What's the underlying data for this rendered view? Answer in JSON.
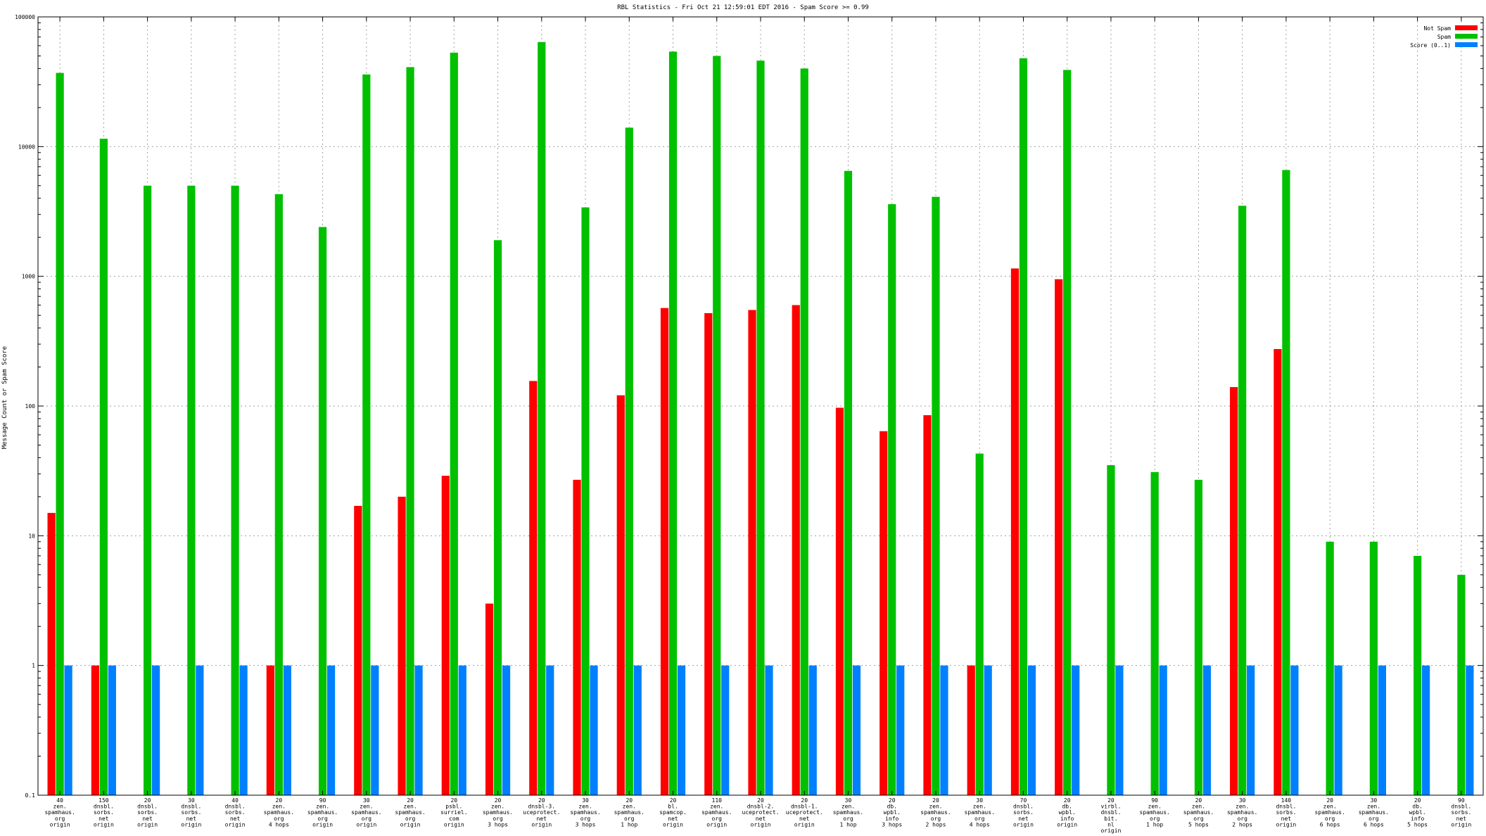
{
  "chart_data": {
    "type": "bar",
    "title": "RBL Statistics - Fri Oct 21 12:59:01 EDT 2016 - Spam Score >= 0.99",
    "xlabel": "",
    "ylabel": "Message Count or Spam Score",
    "yscale": "log",
    "ylim": [
      0.1,
      100000
    ],
    "yticks": [
      "0.1",
      "1",
      "10",
      "100",
      "1000",
      "10000",
      "100000"
    ],
    "grid": true,
    "legend_position": "top-right",
    "categories": [
      [
        "40",
        "zen.",
        "spamhaus.",
        "org",
        "origin"
      ],
      [
        "150",
        "dnsbl.",
        "sorbs.",
        "net",
        "origin"
      ],
      [
        "20",
        "dnsbl.",
        "sorbs.",
        "net",
        "origin"
      ],
      [
        "30",
        "dnsbl.",
        "sorbs.",
        "net",
        "origin"
      ],
      [
        "40",
        "dnsbl.",
        "sorbs.",
        "net",
        "origin"
      ],
      [
        "20",
        "zen.",
        "spamhaus.",
        "org",
        "4 hops"
      ],
      [
        "90",
        "zen.",
        "spamhaus.",
        "org",
        "origin"
      ],
      [
        "30",
        "zen.",
        "spamhaus.",
        "org",
        "origin"
      ],
      [
        "20",
        "zen.",
        "spamhaus.",
        "org",
        "origin"
      ],
      [
        "20",
        "psbl.",
        "surriel.",
        "com",
        "origin"
      ],
      [
        "20",
        "zen.",
        "spamhaus.",
        "org",
        "3 hops"
      ],
      [
        "20",
        "dnsbl-3.",
        "uceprotect.",
        "net",
        "origin"
      ],
      [
        "30",
        "zen.",
        "spamhaus.",
        "org",
        "3 hops"
      ],
      [
        "20",
        "zen.",
        "spamhaus.",
        "org",
        "1 hop"
      ],
      [
        "20",
        "bl.",
        "spamcop.",
        "net",
        "origin"
      ],
      [
        "110",
        "zen.",
        "spamhaus.",
        "org",
        "origin"
      ],
      [
        "20",
        "dnsbl-2.",
        "uceprotect.",
        "net",
        "origin"
      ],
      [
        "20",
        "dnsbl-1.",
        "uceprotect.",
        "net",
        "origin"
      ],
      [
        "30",
        "zen.",
        "spamhaus.",
        "org",
        "1 hop"
      ],
      [
        "20",
        "db.",
        "wpbl.",
        "info",
        "3 hops"
      ],
      [
        "20",
        "zen.",
        "spamhaus.",
        "org",
        "2 hops"
      ],
      [
        "30",
        "zen.",
        "spamhaus.",
        "org",
        "4 hops"
      ],
      [
        "70",
        "dnsbl.",
        "sorbs.",
        "net",
        "origin"
      ],
      [
        "20",
        "db.",
        "wpbl.",
        "info",
        "origin"
      ],
      [
        "20",
        "virbl.",
        "dnsbl.",
        "bit.",
        "nl",
        "origin"
      ],
      [
        "90",
        "zen.",
        "spamhaus.",
        "org",
        "1 hop"
      ],
      [
        "20",
        "zen.",
        "spamhaus.",
        "org",
        "5 hops"
      ],
      [
        "30",
        "zen.",
        "spamhaus.",
        "org",
        "2 hops"
      ],
      [
        "140",
        "dnsbl.",
        "sorbs.",
        "net",
        "origin"
      ],
      [
        "20",
        "zen.",
        "spamhaus.",
        "org",
        "6 hops"
      ],
      [
        "30",
        "zen.",
        "spamhaus.",
        "org",
        "6 hops"
      ],
      [
        "20",
        "db.",
        "wpbl.",
        "info",
        "5 hops"
      ],
      [
        "90",
        "dnsbl.",
        "sorbs.",
        "net",
        "origin"
      ]
    ],
    "series": [
      {
        "name": "Not Spam",
        "color": "#ff0000",
        "values": [
          15,
          1,
          null,
          null,
          null,
          1,
          null,
          17,
          20,
          29,
          3,
          156,
          27,
          121,
          570,
          520,
          550,
          600,
          97,
          64,
          85,
          1,
          1150,
          950,
          null,
          null,
          null,
          140,
          275,
          null,
          null,
          null,
          null
        ]
      },
      {
        "name": "Spam",
        "color": "#00c000",
        "values": [
          37000,
          11500,
          5000,
          5000,
          5000,
          4300,
          2400,
          36000,
          41000,
          53000,
          1900,
          64000,
          3400,
          14000,
          54000,
          50000,
          46000,
          40000,
          6500,
          3600,
          4100,
          43,
          48000,
          39000,
          35,
          31,
          27,
          3500,
          6600,
          9,
          9,
          7,
          5
        ]
      },
      {
        "name": "Score (0..1)",
        "color": "#0080ff",
        "values": [
          1,
          1,
          1,
          1,
          1,
          1,
          1,
          1,
          1,
          1,
          1,
          1,
          1,
          1,
          1,
          1,
          1,
          1,
          1,
          1,
          1,
          1,
          1,
          1,
          1,
          1,
          1,
          1,
          1,
          1,
          1,
          1,
          1
        ]
      }
    ]
  }
}
